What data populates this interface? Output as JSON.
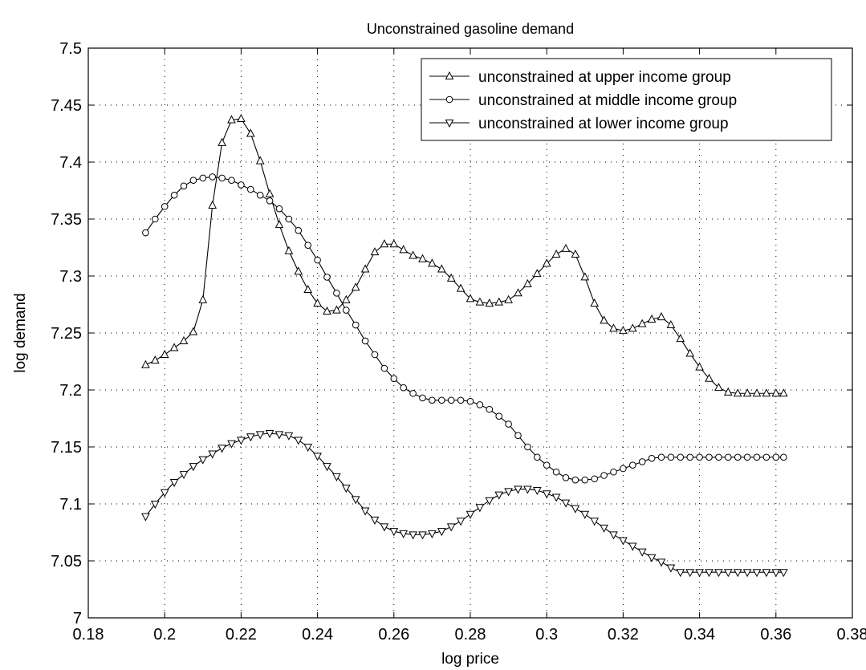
{
  "chart_data": {
    "type": "line",
    "title": "Unconstrained gasoline demand",
    "xlabel": "log price",
    "ylabel": "log demand",
    "xlim": [
      0.18,
      0.38
    ],
    "ylim": [
      7.0,
      7.5
    ],
    "xticks": [
      "0.18",
      "0.2",
      "0.22",
      "0.24",
      "0.26",
      "0.28",
      "0.3",
      "0.32",
      "0.34",
      "0.36",
      "0.38"
    ],
    "yticks": [
      "7",
      "7.05",
      "7.1",
      "7.15",
      "7.2",
      "7.25",
      "7.3",
      "7.35",
      "7.4",
      "7.45",
      "7.5"
    ],
    "grid": true,
    "legend_position": "top-right",
    "x": [
      0.195,
      0.1975,
      0.2,
      0.2025,
      0.205,
      0.2075,
      0.21,
      0.2125,
      0.215,
      0.2175,
      0.22,
      0.2225,
      0.225,
      0.2275,
      0.23,
      0.2325,
      0.235,
      0.2375,
      0.24,
      0.2425,
      0.245,
      0.2475,
      0.25,
      0.2525,
      0.255,
      0.2575,
      0.26,
      0.2625,
      0.265,
      0.2675,
      0.27,
      0.2725,
      0.275,
      0.2775,
      0.28,
      0.2825,
      0.285,
      0.2875,
      0.29,
      0.2925,
      0.295,
      0.2975,
      0.3,
      0.3025,
      0.305,
      0.3075,
      0.31,
      0.3125,
      0.315,
      0.3175,
      0.32,
      0.3225,
      0.325,
      0.3275,
      0.33,
      0.3325,
      0.335,
      0.3375,
      0.34,
      0.3425,
      0.345,
      0.3475,
      0.35,
      0.3525,
      0.355,
      0.3575,
      0.36,
      0.362
    ],
    "series": [
      {
        "name": "unconstrained at upper income group",
        "marker": "triangle-up",
        "values": [
          7.222,
          7.226,
          7.231,
          7.237,
          7.243,
          7.251,
          7.279,
          7.362,
          7.417,
          7.437,
          7.438,
          7.425,
          7.401,
          7.372,
          7.345,
          7.322,
          7.304,
          7.288,
          7.276,
          7.269,
          7.27,
          7.279,
          7.29,
          7.306,
          7.321,
          7.328,
          7.328,
          7.323,
          7.318,
          7.315,
          7.311,
          7.306,
          7.298,
          7.289,
          7.28,
          7.277,
          7.276,
          7.277,
          7.279,
          7.285,
          7.293,
          7.302,
          7.311,
          7.319,
          7.324,
          7.319,
          7.299,
          7.276,
          7.261,
          7.254,
          7.252,
          7.254,
          7.258,
          7.262,
          7.264,
          7.257,
          7.245,
          7.232,
          7.22,
          7.21,
          7.202,
          7.198,
          7.197,
          7.197,
          7.197,
          7.197,
          7.197,
          7.197
        ]
      },
      {
        "name": "unconstrained at middle income group",
        "marker": "circle",
        "values": [
          7.338,
          7.35,
          7.361,
          7.371,
          7.379,
          7.384,
          7.386,
          7.387,
          7.386,
          7.384,
          7.38,
          7.376,
          7.371,
          7.366,
          7.359,
          7.35,
          7.34,
          7.327,
          7.314,
          7.299,
          7.285,
          7.27,
          7.257,
          7.243,
          7.231,
          7.219,
          7.21,
          7.202,
          7.197,
          7.193,
          7.191,
          7.191,
          7.191,
          7.191,
          7.19,
          7.187,
          7.183,
          7.177,
          7.17,
          7.16,
          7.15,
          7.141,
          7.134,
          7.128,
          7.123,
          7.121,
          7.121,
          7.122,
          7.125,
          7.128,
          7.131,
          7.134,
          7.137,
          7.14,
          7.141,
          7.141,
          7.141,
          7.141,
          7.141,
          7.141,
          7.141,
          7.141,
          7.141,
          7.141,
          7.141,
          7.141,
          7.141,
          7.141
        ]
      },
      {
        "name": "unconstrained at lower income group",
        "marker": "triangle-down",
        "values": [
          7.089,
          7.1,
          7.11,
          7.119,
          7.126,
          7.133,
          7.139,
          7.144,
          7.149,
          7.153,
          7.156,
          7.159,
          7.161,
          7.162,
          7.161,
          7.16,
          7.156,
          7.15,
          7.142,
          7.133,
          7.124,
          7.114,
          7.104,
          7.094,
          7.086,
          7.08,
          7.076,
          7.074,
          7.073,
          7.073,
          7.074,
          7.076,
          7.08,
          7.085,
          7.091,
          7.097,
          7.103,
          7.108,
          7.111,
          7.113,
          7.113,
          7.112,
          7.109,
          7.106,
          7.101,
          7.096,
          7.091,
          7.085,
          7.079,
          7.073,
          7.068,
          7.063,
          7.058,
          7.053,
          7.049,
          7.044,
          7.04,
          7.04,
          7.04,
          7.04,
          7.04,
          7.04,
          7.04,
          7.04,
          7.04,
          7.04,
          7.04,
          7.04
        ]
      }
    ]
  }
}
